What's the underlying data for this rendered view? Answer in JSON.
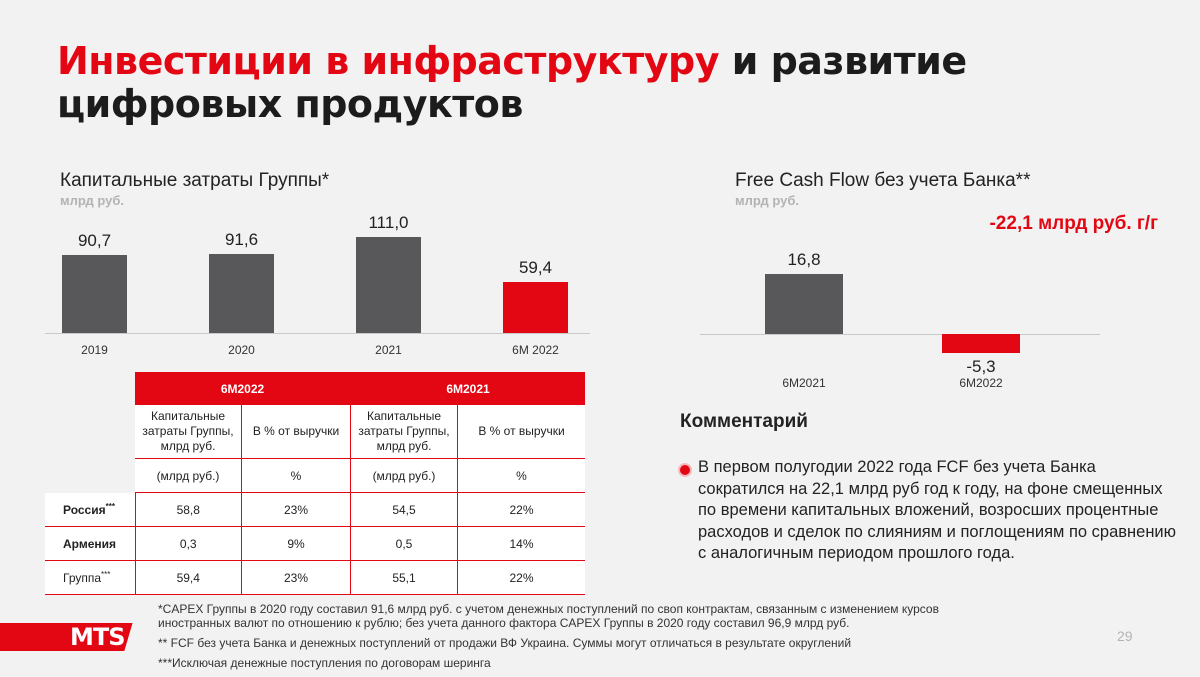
{
  "title": {
    "accent": "Инвестиции в инфраструктуру",
    "rest1": " и развитие",
    "line2": "цифровых продуктов"
  },
  "capex": {
    "title": "Капитальные затраты Группы*",
    "unit": "млрд руб."
  },
  "fcf": {
    "title": "Free Cash Flow без учета Банка**",
    "unit": "млрд руб.",
    "delta": "-22,1 млрд руб. г/г"
  },
  "chart_data": [
    {
      "type": "bar",
      "title": "Капитальные затраты Группы*",
      "ylabel": "млрд руб.",
      "categories": [
        "2019",
        "2020",
        "2021",
        "6М 2022"
      ],
      "values": [
        90.7,
        91.6,
        111.0,
        59.4
      ],
      "labels": [
        "90,7",
        "91,6",
        "111,0",
        "59,4"
      ],
      "colors": [
        "#58585a",
        "#58585a",
        "#58585a",
        "#e30613"
      ],
      "ylim": [
        0,
        111.0
      ],
      "grid": false
    },
    {
      "type": "bar",
      "title": "Free Cash Flow без учета Банка**",
      "ylabel": "млрд руб.",
      "categories": [
        "6М2021",
        "6М2022"
      ],
      "values": [
        16.8,
        -5.3
      ],
      "labels": [
        "16,8",
        "-5,3"
      ],
      "colors": [
        "#58585a",
        "#e30613"
      ],
      "ylim": [
        -5.3,
        16.8
      ],
      "grid": false
    }
  ],
  "table": {
    "periods": [
      "6М2022",
      "6М2021"
    ],
    "sub_headers": [
      "Капитальные затраты Группы, млрд руб.",
      "В % от выручки",
      "Капитальные затраты Группы, млрд руб.",
      "В % от выручки"
    ],
    "units": [
      "(млрд руб.)",
      "%",
      "(млрд руб.)",
      "%"
    ],
    "rows": [
      {
        "label": "Россия",
        "sup": "***",
        "cells": [
          "58,8",
          "23%",
          "54,5",
          "22%"
        ]
      },
      {
        "label": "Армения",
        "sup": "",
        "cells": [
          "0,3",
          "9%",
          "0,5",
          "14%"
        ]
      },
      {
        "label": "Группа",
        "sup": "***",
        "cells": [
          "59,4",
          "23%",
          "55,1",
          "22%"
        ]
      }
    ]
  },
  "comment": {
    "title": "Комментарий",
    "text": "В первом полугодии 2022 года FCF без учета Банка сократился на 22,1 млрд руб год к году, на фоне смещенных по времени капитальных вложений, возросших процентные расходов и сделок по слияниям и поглощениям по сравнению с аналогичным периодом прошлого года."
  },
  "footnotes": [
    "*CAPEX Группы в 2020 году составил 91,6 млрд руб. с учетом денежных поступлений по своп контрактам, связанным с изменением курсов иностранных валют по отношению к рублю; без учета данного фактора CAPEX Группы в 2020 году составил 96,9 млрд руб.",
    "** FCF без учета Банка и денежных поступлений от продажи ВФ Украина. Суммы могут отличаться в результате округлений",
    "***Исключая денежные поступления по договорам шеринга"
  ],
  "logo": "MTS",
  "page_number": "29"
}
